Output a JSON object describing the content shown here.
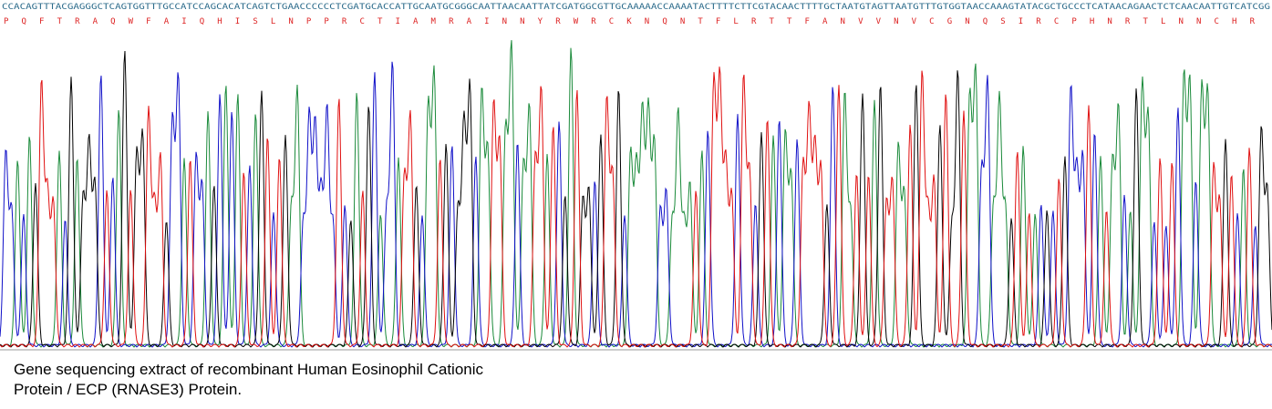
{
  "sequence": "CCACAGTTTACGAGGGCTCAGTGGTTTGCCATCCAGCACATCAGTCTGAACCCCCCTCGATGCACCATTGCAATGCGGGCAATTAACAATTATCGATGGCGTTGCAAAAACCAAAATACTTTTCTTCGTACAACTTTTGCTAATGTAGTTAATGTTTGTGGTAACCAAAGTATACGCTGCCCTCATAACAGAACTCTCAACAATTGTCATCGG",
  "translation": "P Q F T R A Q W F A I Q H I S L N P P R C T I A M R A I N N Y R W R C K N Q N T F L R T T F A N V V N V C G N Q S I R C P H N R T L N N C H R",
  "caption": [
    "Gene sequencing extract of recombinant Human Eosinophil Cationic",
    "Protein / ECP (RNASE3) Protein."
  ]
}
